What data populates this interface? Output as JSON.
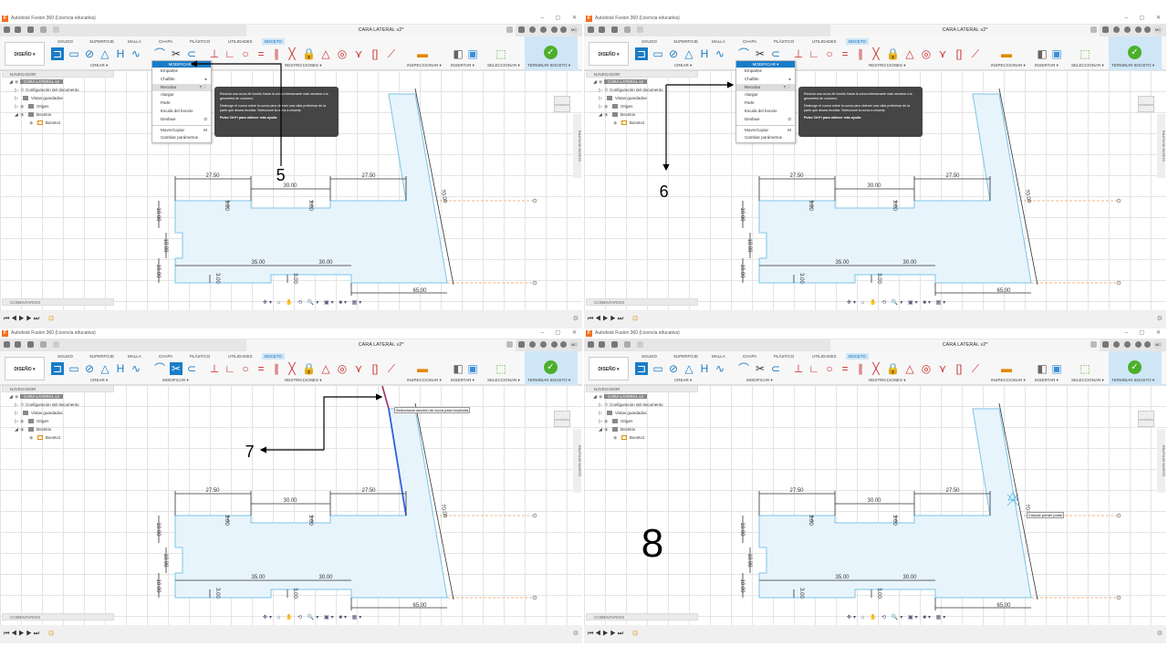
{
  "window_title": "Autodesk Fusion 360 (Licencia educativa)",
  "doc_title": "CARA LATERAL v2*",
  "user_initials": "MC",
  "ribbon": {
    "design_button": "DISEÑO ▾",
    "tabs": [
      "SOLIDO",
      "SUPERFICIE",
      "MALLA",
      "CHAPA",
      "PLÁSTICO",
      "UTILIDADES",
      "BOCETO"
    ],
    "groups": [
      "CREAR ▾",
      "MODIFICAR ▾",
      "RESTRICCIONES ▾",
      "INSPECCIONAR ▾",
      "INSERTAR ▾",
      "SELECCIONAR ▾",
      "TERMINAR BOCETO ▾"
    ]
  },
  "navigator": {
    "header": "NAVEGADOR",
    "items": [
      "CARA LATERAL v2",
      "Configuración del documento",
      "Vistas guardadas",
      "Origen",
      "Bocetos",
      "Boceto1"
    ]
  },
  "comments": "COMENTARIOS",
  "viewcube": "SUPERIOR",
  "palette": "PALETA DE BOCETO",
  "modify_menu": {
    "header": "MODIFICAR ▾",
    "items": [
      {
        "label": "Empalme",
        "shortcut": ""
      },
      {
        "label": "Chaflán",
        "shortcut": "▸"
      },
      {
        "label": "Recortar",
        "shortcut": "T ⋮"
      },
      {
        "label": "Alargar",
        "shortcut": ""
      },
      {
        "label": "Partir",
        "shortcut": ""
      },
      {
        "label": "Escala del boceto",
        "shortcut": ""
      },
      {
        "label": "Desfase",
        "shortcut": "O"
      },
      {
        "label": "Mover/copiar",
        "shortcut": "M"
      },
      {
        "label": "Cambiar parámetros",
        "shortcut": ""
      }
    ]
  },
  "tooltip": {
    "p1": "Recorta una curva de boceto hasta la curva intersecante más cercana o la geometría de contorno.",
    "p2": "Deslunge el cursor sobre la curva para obtener una vista preliminar de la parte que desea recortar. Seleccione la curva a recortar.",
    "p3": "Pulse Ctrl+/ para obtener más ayuda."
  },
  "dimensions": [
    "27.50",
    "30.00",
    "27.50",
    "3.00",
    "3.00",
    "10.00",
    "10.00",
    "10.00",
    "35.00",
    "30.00",
    "3.00",
    "3.00",
    "70.00",
    "65.00"
  ],
  "hints": {
    "trim": "Seleccionar sección de curva para recortarla",
    "point": "Colocar primer punto"
  },
  "steps": [
    "5",
    "6",
    "7",
    "8"
  ],
  "colors": {
    "accent": "#1a7cc7",
    "sketch_fill": "#e8f4fb",
    "sketch_line": "#7cc4e8",
    "trim_highlight": "#3060e0",
    "finish": "#4caf2a"
  }
}
